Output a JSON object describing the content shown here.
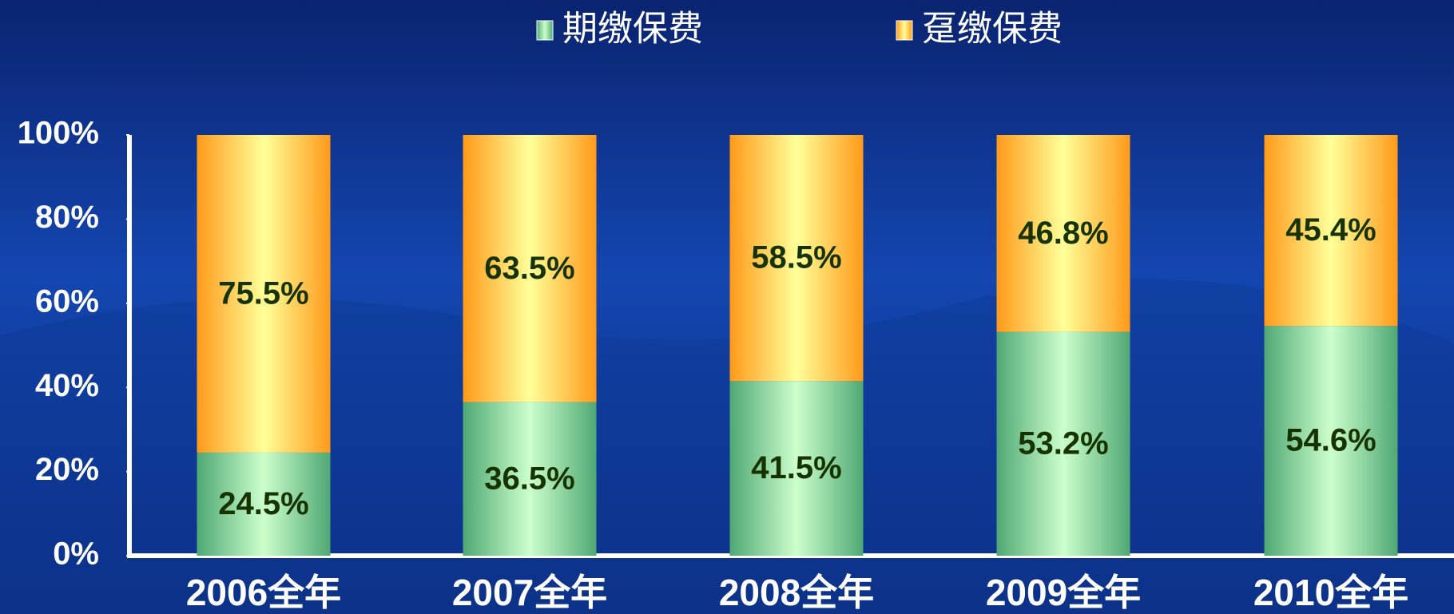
{
  "chart_data": {
    "type": "stacked_bar",
    "categories": [
      "2006全年",
      "2007全年",
      "2008全年",
      "2009全年",
      "2010全年"
    ],
    "series": [
      {
        "name": "期缴保费",
        "color": "#4fa874",
        "values": [
          24.5,
          36.5,
          41.5,
          53.2,
          54.6
        ],
        "value_labels": [
          "24.5%",
          "36.5%",
          "41.5%",
          "53.2%",
          "54.6%"
        ]
      },
      {
        "name": "趸缴保费",
        "color": "#ff9a1a",
        "values": [
          75.5,
          63.5,
          58.5,
          46.8,
          45.4
        ],
        "value_labels": [
          "75.5%",
          "63.5%",
          "58.5%",
          "46.8%",
          "45.4%"
        ]
      }
    ],
    "ylim": [
      0,
      100
    ],
    "yticks": [
      {
        "value": 0,
        "label": "0%"
      },
      {
        "value": 20,
        "label": "20%"
      },
      {
        "value": 40,
        "label": "40%"
      },
      {
        "value": 60,
        "label": "60%"
      },
      {
        "value": 80,
        "label": "80%"
      },
      {
        "value": 100,
        "label": "100%"
      }
    ],
    "legend": "top"
  }
}
